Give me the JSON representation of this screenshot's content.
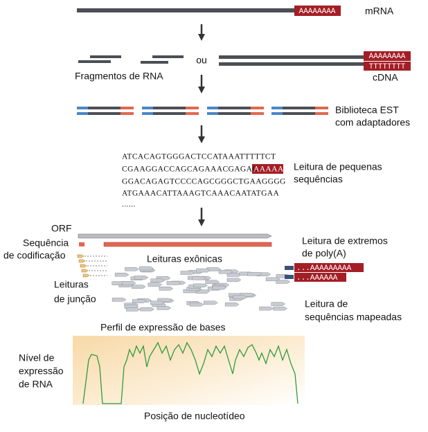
{
  "mrna": {
    "label": "mRNA",
    "poly_a": "AAAAAAAA"
  },
  "step1": {
    "or": "ou",
    "fragments_label": "Fragmentos de RNA",
    "cdna_top": "AAAAAAAA",
    "cdna_bottom": "TTTTTTTT",
    "cdna_label": "cDNA"
  },
  "library": {
    "label_lines": [
      "Biblioteca EST",
      "com adaptadores"
    ]
  },
  "reads": {
    "sequences": [
      "ATCACAGTGGGACTCCATAAATTTTTCT",
      "CGAAGGACCAGCAGAAACGAGAG",
      "GGACAGAGTCCCCAGCGGGCTGAAGGGG",
      "ATGAAACATTAAAGTCAAACAATATGAA",
      "......"
    ],
    "highlight": "AAAAA",
    "label_lines": [
      "Leitura de pequenas",
      "sequências"
    ]
  },
  "mapping": {
    "orf": "ORF",
    "coding_lines": [
      "Sequência",
      "de codificação"
    ],
    "exonic": "Leituras exônicas",
    "junction_lines": [
      "Leituras",
      "de junção"
    ],
    "poly_a_lines": [
      "Leitura de extremos",
      "de poly(A)"
    ],
    "poly_a_reads": [
      "...AAAAAAAAA",
      "...AAAAAA"
    ],
    "mapped_lines": [
      "Leitura de",
      "sequências mapeadas"
    ]
  },
  "profile": {
    "title": "Perfil de expressão de bases",
    "y_label_lines": [
      "Nível de",
      "expressão",
      "de RNA"
    ],
    "x_label": "Posição de nucleotídeo"
  }
}
